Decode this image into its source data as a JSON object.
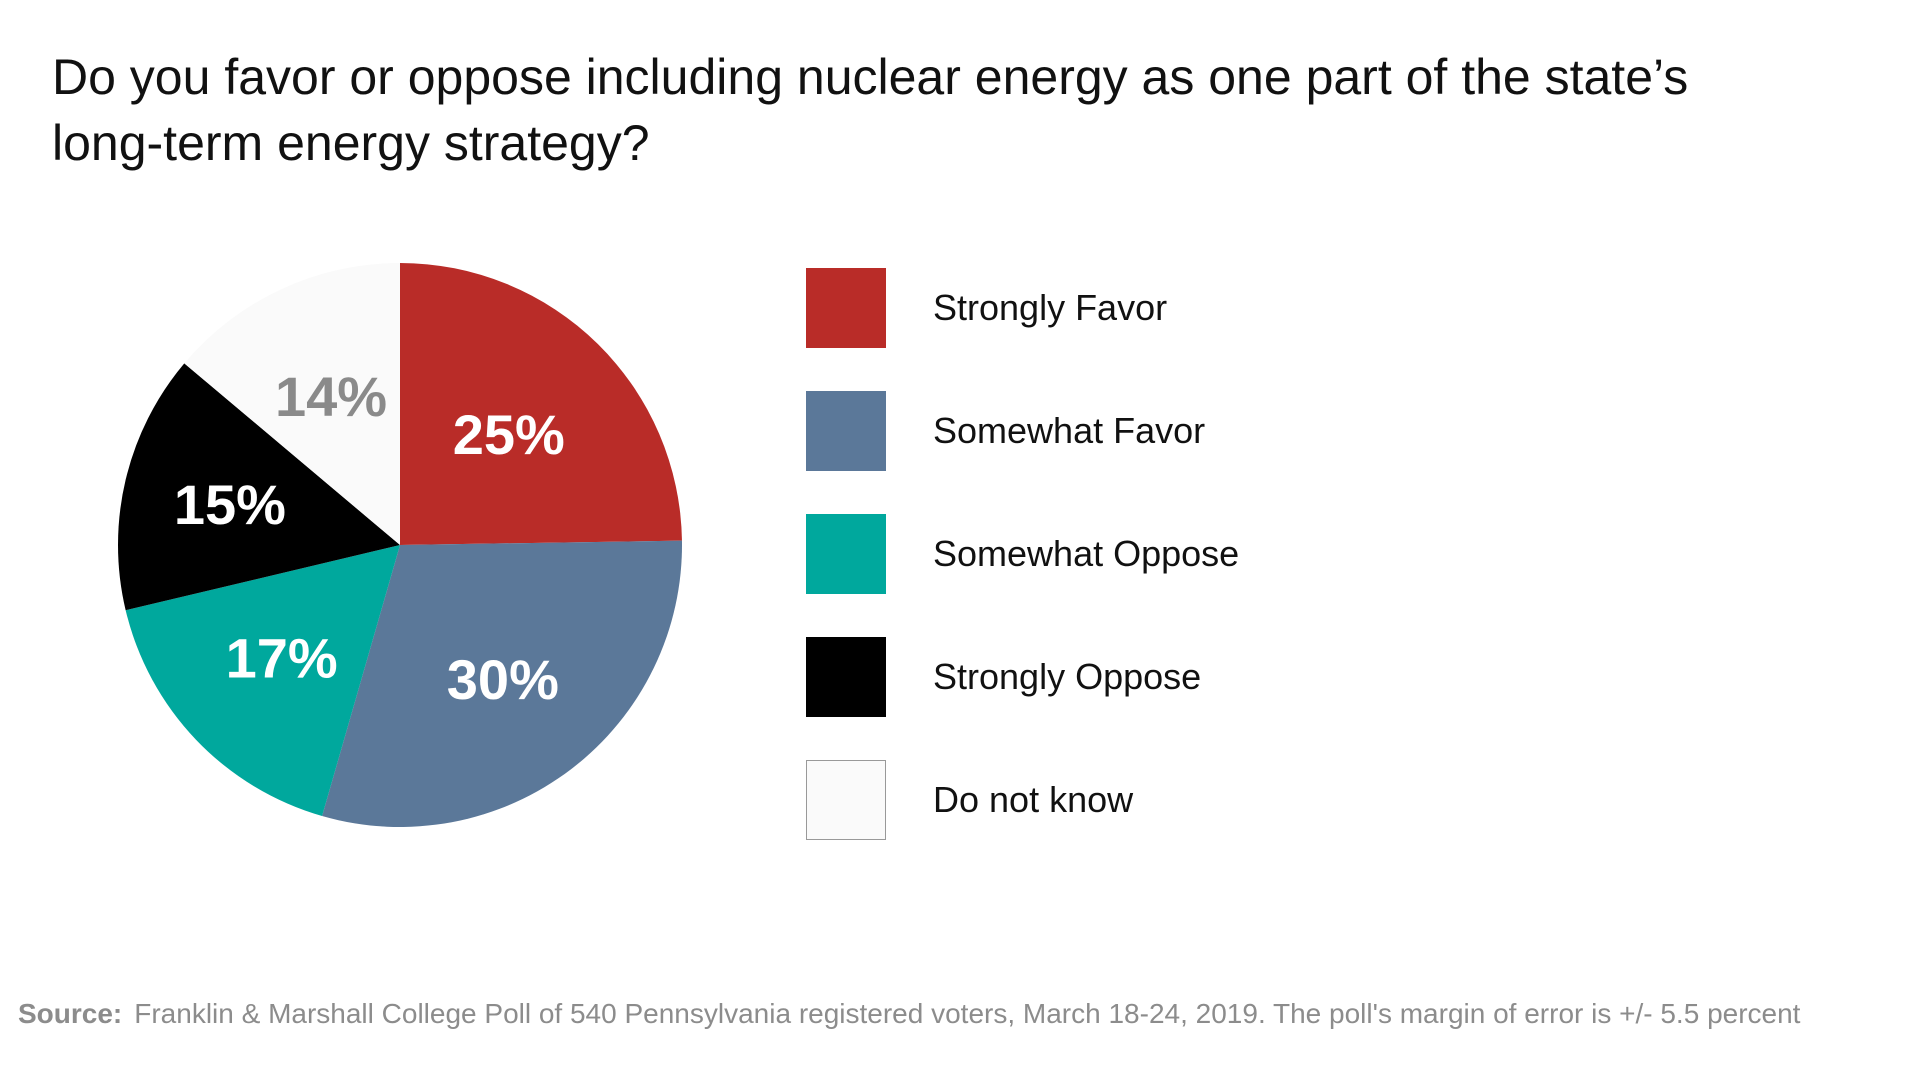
{
  "chart_data": {
    "type": "pie",
    "title": "Do you favor or oppose including nuclear energy as one part of the state’s long-term energy strategy?",
    "slices": [
      {
        "name": "Strongly Favor",
        "value": 25,
        "label": "25%",
        "color": "#b92c28",
        "label_color": "#ffffff"
      },
      {
        "name": "Somewhat Favor",
        "value": 30,
        "label": "30%",
        "color": "#5b7899",
        "label_color": "#ffffff"
      },
      {
        "name": "Somewhat Oppose",
        "value": 17,
        "label": "17%",
        "color": "#00a89d",
        "label_color": "#ffffff"
      },
      {
        "name": "Strongly Oppose",
        "value": 15,
        "label": "15%",
        "color": "#000000",
        "label_color": "#ffffff"
      },
      {
        "name": "Do not know",
        "value": 14,
        "label": "14%",
        "color": "#fafafa",
        "label_color": "#8a8a8a"
      }
    ],
    "start": "12 o'clock",
    "direction": "clockwise",
    "legend_position": "right"
  },
  "source": {
    "label": "Source:",
    "text": "Franklin & Marshall College Poll of 540 Pennsylvania registered voters, March 18-24, 2019. The poll's margin of error is +/- 5.5 percent"
  }
}
